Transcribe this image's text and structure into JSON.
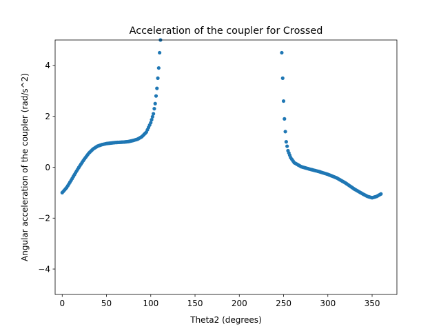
{
  "chart_data": {
    "type": "scatter",
    "title": "Acceleration of the coupler for Crossed",
    "xlabel": "Theta2 (degrees)",
    "ylabel": "Angular acceleration of the coupler (rad/s^2)",
    "xlim": [
      -8,
      378
    ],
    "ylim": [
      -5,
      5
    ],
    "xticks": [
      0,
      50,
      100,
      150,
      200,
      250,
      300,
      350
    ],
    "yticks": [
      -4,
      -2,
      0,
      2,
      4
    ],
    "grid": false,
    "marker_color": "#1f77b4",
    "series": [
      {
        "points": [
          [
            0,
            -1.0
          ],
          [
            5,
            -0.8
          ],
          [
            10,
            -0.52
          ],
          [
            15,
            -0.22
          ],
          [
            20,
            0.06
          ],
          [
            25,
            0.32
          ],
          [
            30,
            0.55
          ],
          [
            35,
            0.72
          ],
          [
            40,
            0.83
          ],
          [
            45,
            0.89
          ],
          [
            50,
            0.93
          ],
          [
            55,
            0.95
          ],
          [
            60,
            0.97
          ],
          [
            65,
            0.98
          ],
          [
            70,
            0.99
          ],
          [
            75,
            1.01
          ],
          [
            80,
            1.05
          ],
          [
            85,
            1.1
          ],
          [
            90,
            1.2
          ],
          [
            95,
            1.38
          ],
          [
            100,
            1.75
          ],
          [
            103,
            2.1
          ],
          [
            105,
            2.5
          ],
          [
            106,
            2.8
          ],
          [
            107,
            3.1
          ],
          [
            108,
            3.5
          ],
          [
            109,
            3.9
          ],
          [
            110,
            4.5
          ],
          [
            111,
            5.0
          ],
          [
            248,
            4.5
          ],
          [
            249,
            3.5
          ],
          [
            250,
            2.6
          ],
          [
            251,
            1.9
          ],
          [
            252,
            1.4
          ],
          [
            253,
            1.0
          ],
          [
            255,
            0.65
          ],
          [
            258,
            0.38
          ],
          [
            262,
            0.18
          ],
          [
            270,
            0.02
          ],
          [
            280,
            -0.08
          ],
          [
            290,
            -0.17
          ],
          [
            300,
            -0.28
          ],
          [
            310,
            -0.42
          ],
          [
            320,
            -0.62
          ],
          [
            330,
            -0.86
          ],
          [
            340,
            -1.06
          ],
          [
            345,
            -1.15
          ],
          [
            350,
            -1.2
          ],
          [
            355,
            -1.15
          ],
          [
            360,
            -1.05
          ]
        ]
      }
    ]
  }
}
